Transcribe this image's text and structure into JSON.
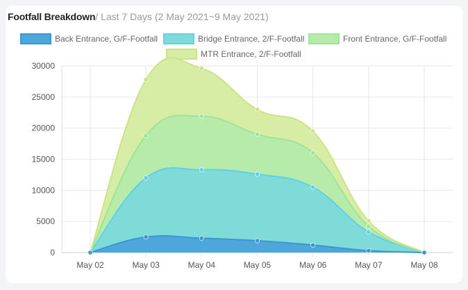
{
  "header": {
    "title": "Footfall Breakdown",
    "subtitle": "/ Last 7 Days (2 May 2021~9 May 2021)"
  },
  "chart_data": {
    "type": "area",
    "stacked": true,
    "smooth": true,
    "categories": [
      "May 02",
      "May 03",
      "May 04",
      "May 05",
      "May 06",
      "May 07",
      "May 08"
    ],
    "ylim": [
      0,
      30000
    ],
    "yticks": [
      0,
      5000,
      10000,
      15000,
      20000,
      25000,
      30000
    ],
    "grid": true,
    "legend_position": "top",
    "series": [
      {
        "name": "Back Entrance, G/F-Footfall",
        "values": [
          0,
          2500,
          2300,
          1900,
          1200,
          300,
          0
        ],
        "fill": "#4ea7db",
        "stroke": "#3b96d4"
      },
      {
        "name": "Bridge Entrance, 2/F-Footfall",
        "values": [
          0,
          9500,
          11000,
          10700,
          9300,
          3000,
          0
        ],
        "fill": "#7fdbd8",
        "stroke": "#5fd0ec"
      },
      {
        "name": "Front Entrance, G/F-Footfall",
        "values": [
          0,
          6800,
          8600,
          6400,
          5500,
          900,
          0
        ],
        "fill": "#b7ebaa",
        "stroke": "#9de39a"
      },
      {
        "name": "MTR Entrance, 2/F-Footfall",
        "values": [
          0,
          9000,
          7700,
          4000,
          3500,
          900,
          0
        ],
        "fill": "#d7eda5",
        "stroke": "#cde486"
      }
    ]
  }
}
